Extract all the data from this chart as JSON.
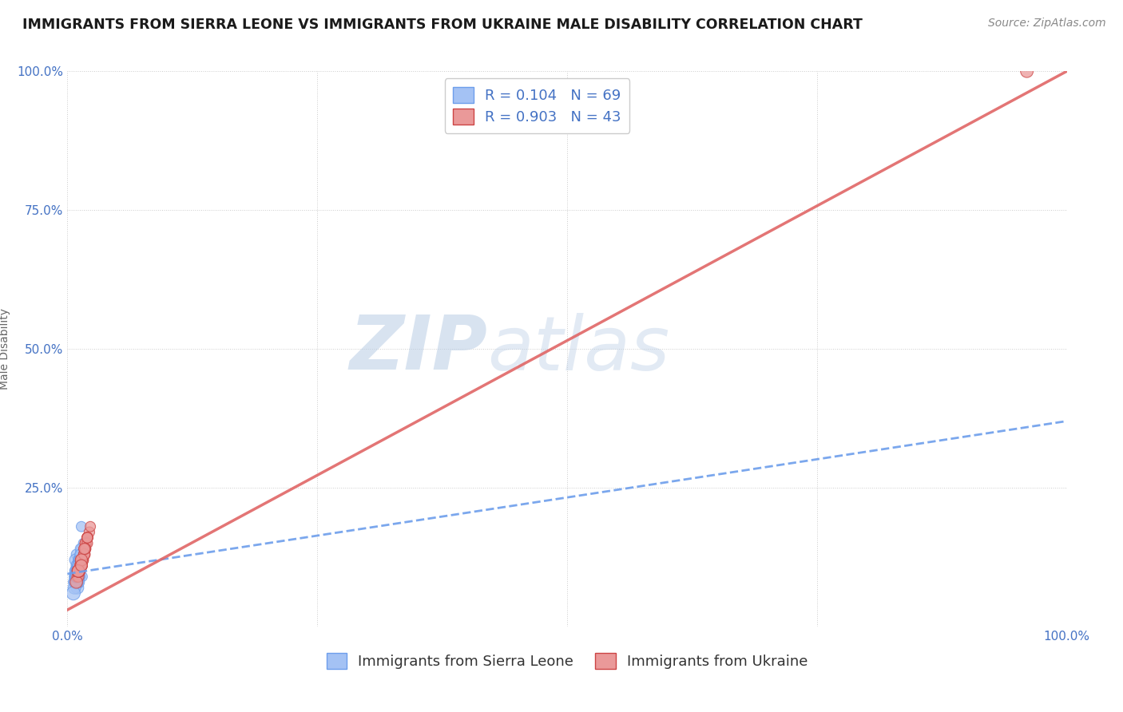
{
  "title": "IMMIGRANTS FROM SIERRA LEONE VS IMMIGRANTS FROM UKRAINE MALE DISABILITY CORRELATION CHART",
  "source": "Source: ZipAtlas.com",
  "ylabel": "Male Disability",
  "watermark_part1": "ZIP",
  "watermark_part2": "atlas",
  "sierra_leone": {
    "label": "Immigrants from Sierra Leone",
    "color": "#a4c2f4",
    "edge_color": "#6d9eeb",
    "R": 0.104,
    "N": 69,
    "line_color": "#6d9eeb",
    "line_style": "--",
    "x": [
      0.01,
      0.012,
      0.008,
      0.015,
      0.01,
      0.011,
      0.009,
      0.013,
      0.01,
      0.008,
      0.012,
      0.01,
      0.009,
      0.011,
      0.01,
      0.008,
      0.012,
      0.01,
      0.013,
      0.009,
      0.01,
      0.011,
      0.008,
      0.012,
      0.01,
      0.009,
      0.011,
      0.01,
      0.012,
      0.008,
      0.014,
      0.01,
      0.009,
      0.011,
      0.01,
      0.016,
      0.012,
      0.011,
      0.01,
      0.009,
      0.011,
      0.01,
      0.013,
      0.009,
      0.012,
      0.01,
      0.008,
      0.011,
      0.01,
      0.013,
      0.008,
      0.01,
      0.012,
      0.009,
      0.011,
      0.013,
      0.01,
      0.009,
      0.007,
      0.011,
      0.01,
      0.013,
      0.008,
      0.011,
      0.009,
      0.014,
      0.01,
      0.009,
      0.006
    ],
    "y": [
      0.08,
      0.12,
      0.1,
      0.09,
      0.07,
      0.11,
      0.13,
      0.12,
      0.1,
      0.08,
      0.09,
      0.11,
      0.1,
      0.12,
      0.08,
      0.09,
      0.1,
      0.11,
      0.13,
      0.09,
      0.08,
      0.1,
      0.12,
      0.11,
      0.09,
      0.1,
      0.08,
      0.11,
      0.09,
      0.1,
      0.14,
      0.1,
      0.08,
      0.12,
      0.09,
      0.15,
      0.11,
      0.1,
      0.09,
      0.08,
      0.11,
      0.1,
      0.13,
      0.09,
      0.12,
      0.1,
      0.08,
      0.11,
      0.09,
      0.14,
      0.08,
      0.1,
      0.12,
      0.09,
      0.11,
      0.13,
      0.1,
      0.09,
      0.07,
      0.11,
      0.1,
      0.12,
      0.08,
      0.11,
      0.09,
      0.18,
      0.1,
      0.09,
      0.06
    ],
    "sizes": [
      120,
      90,
      100,
      80,
      130,
      95,
      85,
      110,
      90,
      150,
      100,
      120,
      130,
      90,
      100,
      125,
      95,
      110,
      85,
      100,
      120,
      95,
      110,
      90,
      130,
      100,
      120,
      125,
      95,
      100,
      85,
      110,
      145,
      90,
      100,
      80,
      95,
      110,
      120,
      130,
      100,
      110,
      90,
      125,
      95,
      120,
      130,
      100,
      110,
      85,
      145,
      120,
      95,
      125,
      100,
      90,
      110,
      120,
      130,
      95,
      110,
      90,
      125,
      100,
      120,
      85,
      100,
      110,
      150
    ]
  },
  "ukraine": {
    "label": "Immigrants from Ukraine",
    "color": "#ea9999",
    "edge_color": "#cc4444",
    "R": 0.903,
    "N": 43,
    "line_color": "#e06666",
    "line_style": "-",
    "x": [
      0.01,
      0.012,
      0.014,
      0.018,
      0.02,
      0.015,
      0.011,
      0.017,
      0.022,
      0.013,
      0.011,
      0.018,
      0.02,
      0.015,
      0.009,
      0.017,
      0.014,
      0.019,
      0.012,
      0.018,
      0.014,
      0.02,
      0.017,
      0.015,
      0.011,
      0.018,
      0.014,
      0.02,
      0.017,
      0.023,
      0.014,
      0.011,
      0.018,
      0.014,
      0.02,
      0.017,
      0.014,
      0.011,
      0.018,
      0.014,
      0.02,
      0.017,
      0.96
    ],
    "y": [
      0.09,
      0.1,
      0.11,
      0.14,
      0.16,
      0.12,
      0.09,
      0.13,
      0.17,
      0.11,
      0.1,
      0.14,
      0.16,
      0.12,
      0.08,
      0.13,
      0.12,
      0.15,
      0.1,
      0.15,
      0.11,
      0.16,
      0.14,
      0.12,
      0.1,
      0.15,
      0.12,
      0.15,
      0.13,
      0.18,
      0.11,
      0.1,
      0.14,
      0.11,
      0.16,
      0.13,
      0.12,
      0.1,
      0.14,
      0.11,
      0.16,
      0.14,
      1.0
    ],
    "sizes": [
      100,
      95,
      110,
      90,
      85,
      120,
      100,
      95,
      90,
      110,
      120,
      95,
      100,
      110,
      125,
      90,
      100,
      95,
      120,
      90,
      110,
      95,
      100,
      120,
      125,
      95,
      100,
      90,
      110,
      85,
      120,
      125,
      95,
      110,
      90,
      100,
      120,
      125,
      95,
      110,
      90,
      100,
      130
    ]
  },
  "xlim": [
    0.0,
    1.0
  ],
  "ylim": [
    0.0,
    1.0
  ],
  "xticks": [
    0.0,
    0.25,
    0.5,
    0.75,
    1.0
  ],
  "yticks": [
    0.0,
    0.25,
    0.5,
    0.75,
    1.0
  ],
  "xticklabels": [
    "0.0%",
    "",
    "",
    "",
    "100.0%"
  ],
  "yticklabels": [
    "",
    "25.0%",
    "50.0%",
    "75.0%",
    "100.0%"
  ],
  "tick_color": "#4472c4",
  "grid_color": "#cccccc",
  "background_color": "#ffffff",
  "title_fontsize": 12.5,
  "source_fontsize": 10,
  "axis_label_fontsize": 10,
  "tick_fontsize": 11,
  "legend_fontsize": 13,
  "top_legend_R_color": "#4472c4",
  "top_legend_N_color": "#4472c4"
}
